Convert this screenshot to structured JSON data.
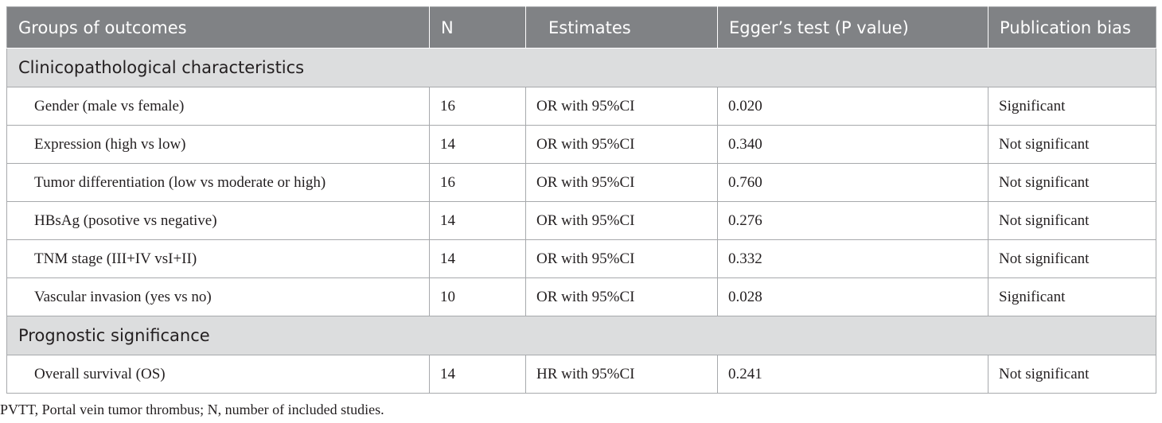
{
  "table": {
    "headers": [
      "Groups of outcomes",
      "N",
      "Estimates",
      "Egger’s test (P value)",
      "Publication bias"
    ],
    "sections": [
      {
        "title": "Clinicopathological characteristics",
        "rows": [
          {
            "outcome": "Gender (male vs female)",
            "n": "16",
            "estimate": "OR with 95%CI",
            "egger_p": "0.020",
            "bias": "Significant"
          },
          {
            "outcome": "Expression (high vs low)",
            "n": "14",
            "estimate": "OR with 95%CI",
            "egger_p": "0.340",
            "bias": "Not significant"
          },
          {
            "outcome": "Tumor differentiation (low vs moderate or high)",
            "n": "16",
            "estimate": "OR with 95%CI",
            "egger_p": "0.760",
            "bias": "Not significant"
          },
          {
            "outcome": "HBsAg (posotive vs negative)",
            "n": "14",
            "estimate": "OR with 95%CI",
            "egger_p": "0.276",
            "bias": "Not significant"
          },
          {
            "outcome": "TNM stage (III+IV vsI+II)",
            "n": "14",
            "estimate": "OR with 95%CI",
            "egger_p": "0.332",
            "bias": "Not significant"
          },
          {
            "outcome": "Vascular invasion (yes vs no)",
            "n": "10",
            "estimate": "OR with 95%CI",
            "egger_p": "0.028",
            "bias": "Significant"
          }
        ]
      },
      {
        "title": "Prognostic significance",
        "rows": [
          {
            "outcome": "Overall survival (OS)",
            "n": "14",
            "estimate": "HR with 95%CI",
            "egger_p": "0.241",
            "bias": "Not significant"
          }
        ]
      }
    ]
  },
  "footnote": "PVTT, Portal vein tumor thrombus; N, number of included studies."
}
